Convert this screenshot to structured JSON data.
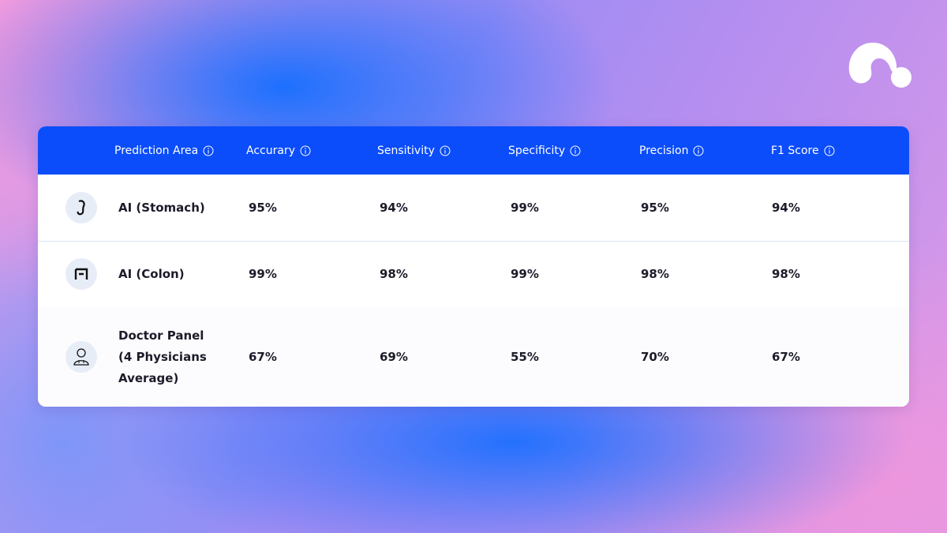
{
  "table": {
    "columns": [
      "Prediction Area",
      "Accurary",
      "Sensitivity",
      "Specificity",
      "Precision",
      "F1 Score"
    ],
    "rows": [
      [
        "AI (Stomach)",
        "95%",
        "94%",
        "99%",
        "95%",
        "94%"
      ],
      [
        "AI (Colon)",
        "99%",
        "98%",
        "99%",
        "98%",
        "98%"
      ],
      [
        "Doctor Panel (4 Physicians Average)",
        "67%",
        "69%",
        "55%",
        "70%",
        "67%"
      ]
    ]
  }
}
